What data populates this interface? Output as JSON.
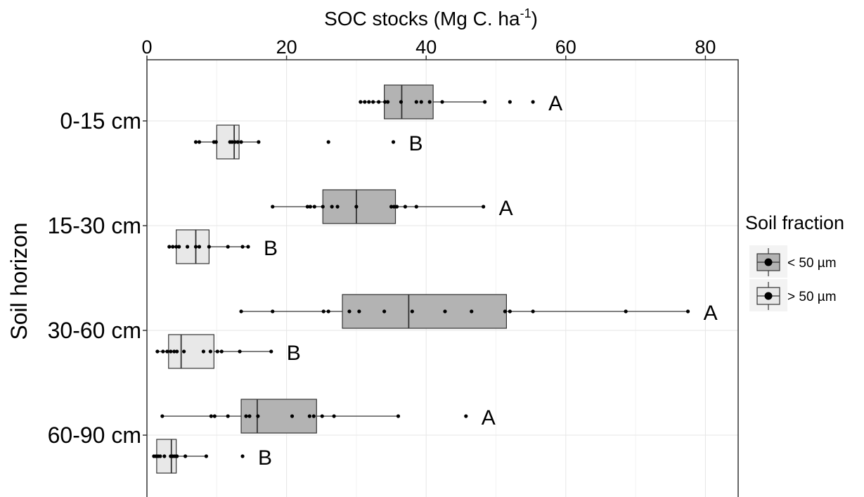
{
  "chart_data": {
    "type": "boxplot",
    "orientation": "horizontal",
    "title": "",
    "xlabel": "SOC stocks (Mg C. ha-1)",
    "xlabel_main": "SOC stocks (Mg C. ha",
    "xlabel_sup": "-1",
    "xlabel_end": ")",
    "ylabel": "Soil horizon",
    "xlim": [
      0,
      85
    ],
    "xticks": [
      0,
      20,
      40,
      60,
      80
    ],
    "xaxis_position": "top",
    "grid": true,
    "categories": [
      "0-15 cm",
      "15-30 cm",
      "30-60 cm",
      "60-90 cm"
    ],
    "legend": {
      "title": "Soil fraction",
      "position": "right",
      "entries": [
        {
          "name": "< 50 µm",
          "color": "#b3b3b3"
        },
        {
          "name": "> 50 µm",
          "color": "#e8e8e8"
        }
      ]
    },
    "series": [
      {
        "name": "< 50 µm",
        "color": "#b3b3b3",
        "boxes": [
          {
            "category": "0-15 cm",
            "whisker_low": 30.5,
            "q1": 34,
            "median": 36.5,
            "q3": 41,
            "whisker_high": 48.5,
            "outliers": [
              52,
              55.3
            ],
            "points": [
              30.6,
              31.2,
              31.8,
              32.4,
              33.2,
              34.1,
              34.5,
              36.4,
              38.6,
              39.3,
              40.5,
              42.3,
              48.4,
              52,
              55.3
            ],
            "sig": "A"
          },
          {
            "category": "15-30 cm",
            "whisker_low": 18,
            "q1": 25.2,
            "median": 30,
            "q3": 35.6,
            "whisker_high": 48.2,
            "outliers": [],
            "points": [
              18,
              23,
              23.4,
              24,
              25.2,
              26.5,
              27.3,
              30,
              35,
              35.4,
              35.8,
              37,
              38.6,
              48.2
            ],
            "sig": "A"
          },
          {
            "category": "30-60 cm",
            "whisker_low": 13.5,
            "q1": 28,
            "median": 37.5,
            "q3": 51.5,
            "whisker_high": 77.5,
            "outliers": [],
            "points": [
              13.5,
              18,
              25.3,
              26,
              29,
              30.4,
              34,
              38,
              42.7,
              46.5,
              51.3,
              52,
              55.3,
              68.6,
              77.5
            ],
            "sig": "A"
          },
          {
            "category": "60-90 cm",
            "whisker_low": 2.2,
            "q1": 13.5,
            "median": 15.8,
            "q3": 24.3,
            "whisker_high": 36,
            "outliers": [
              45.7
            ],
            "points": [
              2.2,
              9.2,
              9.7,
              11.6,
              14.2,
              14.7,
              15.9,
              20.8,
              23.3,
              23.9,
              25.1,
              26.8,
              36,
              45.7
            ],
            "sig": "A"
          }
        ]
      },
      {
        "name": "> 50 µm",
        "color": "#e8e8e8",
        "boxes": [
          {
            "category": "0-15 cm",
            "whisker_low": 7,
            "q1": 10,
            "median": 12.5,
            "q3": 13.2,
            "whisker_high": 16,
            "outliers": [
              26,
              35.3
            ],
            "points": [
              7,
              7.5,
              9.6,
              9.9,
              11.9,
              12.2,
              12.6,
              13,
              13.5,
              16,
              26,
              35.3
            ],
            "sig": "B"
          },
          {
            "category": "15-30 cm",
            "whisker_low": 3.2,
            "q1": 4.2,
            "median": 7,
            "q3": 8.9,
            "whisker_high": 14.5,
            "outliers": [],
            "points": [
              3.2,
              3.7,
              4.2,
              4.6,
              5.8,
              7,
              7.5,
              8.9,
              11.6,
              13.7,
              14.5
            ],
            "sig": "B"
          },
          {
            "category": "30-60 cm",
            "whisker_low": 1.5,
            "q1": 3.1,
            "median": 4.9,
            "q3": 9.6,
            "whisker_high": 17.8,
            "outliers": [],
            "points": [
              1.5,
              2.3,
              2.9,
              3.4,
              3.9,
              4.3,
              5.3,
              8.1,
              9.1,
              10.1,
              10.7,
              13.3,
              17.8
            ],
            "sig": "B"
          },
          {
            "category": "60-90 cm",
            "whisker_low": 1,
            "q1": 1.4,
            "median": 3.5,
            "q3": 4.2,
            "whisker_high": 8.5,
            "outliers": [
              13.7
            ],
            "points": [
              1,
              1.3,
              1.6,
              1.9,
              2.5,
              3.4,
              3.7,
              4,
              4.3,
              5.5,
              8.5,
              13.7
            ],
            "sig": "B"
          }
        ]
      }
    ]
  }
}
